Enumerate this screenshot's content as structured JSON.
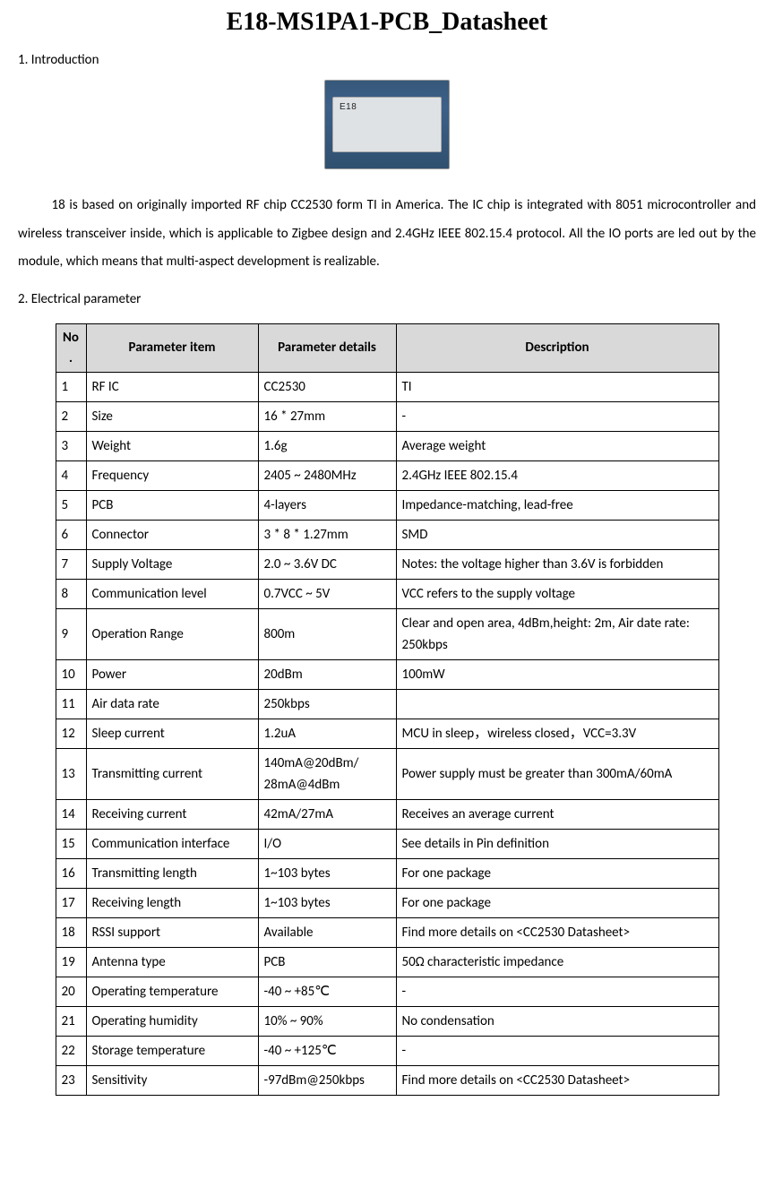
{
  "title": "E18-MS1PA1-PCB_Datasheet",
  "section1": {
    "heading": "1. Introduction",
    "paragraph": "18 is based on originally imported RF chip CC2530 form TI in America. The IC chip is integrated with 8051 microcontroller and wireless transceiver inside, which is applicable to Zigbee design and 2.4GHz IEEE 802.15.4 protocol. All the IO ports are led out by the module, which means that multi-aspect development is realizable."
  },
  "section2": {
    "heading": "2. Electrical parameter"
  },
  "table": {
    "headers": {
      "no": "No.",
      "item": "Parameter item",
      "details": "Parameter details",
      "desc": "Description"
    },
    "header_bg": "#d9d9d9",
    "border_color": "#000000",
    "rows": [
      {
        "no": "1",
        "item": "RF IC",
        "details": "CC2530",
        "desc": "TI"
      },
      {
        "no": "2",
        "item": "Size",
        "details": "16 * 27mm",
        "desc": "-"
      },
      {
        "no": "3",
        "item": "Weight",
        "details": "1.6g",
        "desc": "Average weight"
      },
      {
        "no": "4",
        "item": "Frequency",
        "details": "2405 ~ 2480MHz",
        "desc": "2.4GHz   IEEE 802.15.4"
      },
      {
        "no": "5",
        "item": "PCB",
        "details": "4-layers",
        "desc": "Impedance-matching, lead-free"
      },
      {
        "no": "6",
        "item": "Connector",
        "details": "3 * 8 * 1.27mm",
        "desc": "SMD"
      },
      {
        "no": "7",
        "item": "Supply Voltage",
        "details": "2.0 ~ 3.6V DC",
        "desc": "Notes: the voltage higher than 3.6V is forbidden"
      },
      {
        "no": "8",
        "item": "Communication level",
        "details": "0.7VCC ~ 5V",
        "desc": "VCC refers to the supply voltage"
      },
      {
        "no": "9",
        "item": "Operation Range",
        "details": "800m",
        "desc": "Clear and open area, 4dBm,height: 2m, Air date rate: 250kbps"
      },
      {
        "no": "10",
        "item": "Power",
        "details": "20dBm",
        "desc": "100mW"
      },
      {
        "no": "11",
        "item": "Air data rate",
        "details": "250kbps",
        "desc": ""
      },
      {
        "no": "12",
        "item": "Sleep current",
        "details": "1.2uA",
        "desc": "MCU in sleep，wireless closed，VCC=3.3V"
      },
      {
        "no": "13",
        "item": "Transmitting current",
        "details": "140mA@20dBm/ 28mA@4dBm",
        "desc": "Power supply must be greater than 300mA/60mA"
      },
      {
        "no": "14",
        "item": "Receiving current",
        "details": "42mA/27mA",
        "desc": "Receives an average current"
      },
      {
        "no": "15",
        "item": "Communication interface",
        "details": "I/O",
        "desc": "See details in Pin definition"
      },
      {
        "no": "16",
        "item": "Transmitting length",
        "details": "1~103 bytes",
        "desc": "For one package"
      },
      {
        "no": "17",
        "item": "Receiving length",
        "details": "1~103 bytes",
        "desc": "For one package"
      },
      {
        "no": "18",
        "item": "RSSI support",
        "details": "Available",
        "desc": "Find more details on <CC2530 Datasheet>"
      },
      {
        "no": "19",
        "item": "Antenna type",
        "details": "PCB",
        "desc": "50Ω  characteristic impedance"
      },
      {
        "no": "20",
        "item": "Operating temperature",
        "details": "-40 ~ +85℃",
        "desc": "-"
      },
      {
        "no": "21",
        "item": "Operating humidity",
        "details": "10% ~ 90%",
        "desc": "No condensation"
      },
      {
        "no": "22",
        "item": "Storage temperature",
        "details": "-40 ~ +125℃",
        "desc": "-"
      },
      {
        "no": "23",
        "item": "Sensitivity",
        "details": "-97dBm@250kbps",
        "desc": "Find more details on <CC2530 Datasheet>"
      }
    ]
  }
}
